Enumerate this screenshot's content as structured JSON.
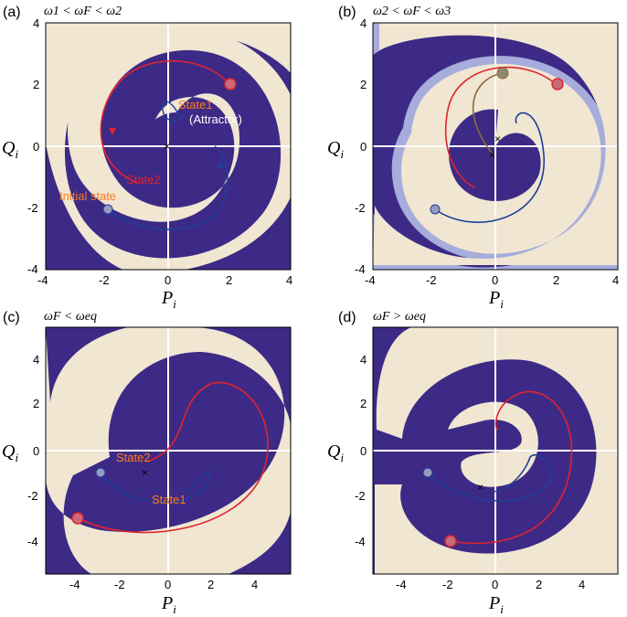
{
  "colors": {
    "dark": "#3d2a86",
    "light": "#f0e6d2",
    "halo": "#a6acdb",
    "red_curve": "#e0242b",
    "blue_curve": "#1f3f9a",
    "brown_curve": "#8a6a3a",
    "annotation_orange": "#ff7a1a",
    "annotation_red": "#e0242b",
    "annotation_white": "#ffffff"
  },
  "panels": [
    {
      "id": "a",
      "label": "(a)",
      "condition": "ω1 < ωF < ω2",
      "x_ticks": [
        "-4",
        "-2",
        "0",
        "2",
        "4"
      ],
      "y_ticks": [
        "4",
        "2",
        "0",
        "-2",
        "-4"
      ],
      "xlabel": "P",
      "ylabel": "Q",
      "sub": "i",
      "annotations": {
        "state1": "State1",
        "attractor": "(Attractor)",
        "state2": "State2",
        "initial": "Initial state"
      }
    },
    {
      "id": "b",
      "label": "(b)",
      "condition": "ω2 < ωF < ω3",
      "x_ticks": [
        "-4",
        "-2",
        "0",
        "2",
        "4"
      ],
      "y_ticks": [
        "4",
        "2",
        "0",
        "-2",
        "-4"
      ],
      "xlabel": "P",
      "ylabel": "Q",
      "sub": "i"
    },
    {
      "id": "c",
      "label": "(c)",
      "condition": "ωF < ωeq",
      "x_ticks": [
        "-4",
        "-2",
        "0",
        "2",
        "4"
      ],
      "y_ticks": [
        "4",
        "2",
        "0",
        "-2",
        "-4"
      ],
      "xlabel": "P",
      "ylabel": "Q",
      "sub": "i",
      "annotations": {
        "state2": "State2",
        "state1": "State1"
      }
    },
    {
      "id": "d",
      "label": "(d)",
      "condition": "ωF > ωeq",
      "x_ticks": [
        "-4",
        "-2",
        "0",
        "2",
        "4"
      ],
      "y_ticks": [
        "4",
        "2",
        "0",
        "-2",
        "-4"
      ],
      "xlabel": "P",
      "ylabel": "Q",
      "sub": "i"
    }
  ]
}
